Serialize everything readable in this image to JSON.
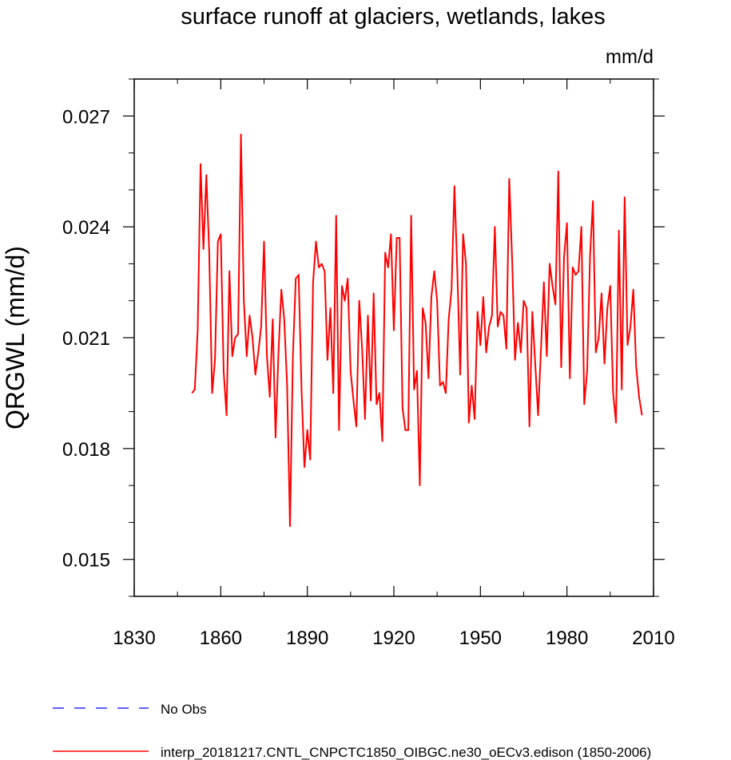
{
  "chart_data": {
    "type": "line",
    "title": "surface runoff at glaciers, wetlands, lakes",
    "units": "mm/d",
    "ylabel": "QRGWL  (mm/d)",
    "xlabel": "",
    "xlim": [
      1830,
      2010
    ],
    "ylim": [
      0.014,
      0.028
    ],
    "xticks": [
      1830,
      1860,
      1890,
      1920,
      1950,
      1980,
      2010
    ],
    "xtick_labels": [
      "1830",
      "1860",
      "1890",
      "1920",
      "1950",
      "1980",
      "2010"
    ],
    "yticks": [
      0.015,
      0.018,
      0.021,
      0.024,
      0.027
    ],
    "ytick_labels": [
      "0.015",
      "0.018",
      "0.021",
      "0.024",
      "0.027"
    ],
    "grid": false,
    "legend_position": "bottom",
    "series": [
      {
        "name": "No Obs",
        "color": "#0000ff",
        "style": "dashed",
        "x": [],
        "y": []
      },
      {
        "name": "interp_20181217.CNTL_CNPCTC1850_OIBGC.ne30_oECv3.edison (1850-2006)",
        "color": "#ff0000",
        "style": "solid",
        "x_start": 1850,
        "x_step": 1,
        "y": [
          0.0195,
          0.0196,
          0.0212,
          0.0257,
          0.0234,
          0.0254,
          0.0233,
          0.0195,
          0.0204,
          0.0236,
          0.0238,
          0.0201,
          0.0189,
          0.0228,
          0.0205,
          0.021,
          0.0211,
          0.0265,
          0.022,
          0.0205,
          0.0216,
          0.021,
          0.02,
          0.0206,
          0.0213,
          0.0236,
          0.0205,
          0.0194,
          0.0215,
          0.0183,
          0.0206,
          0.0223,
          0.0215,
          0.0197,
          0.0159,
          0.0205,
          0.0226,
          0.0227,
          0.0196,
          0.0175,
          0.0185,
          0.0177,
          0.0225,
          0.0236,
          0.0229,
          0.023,
          0.0228,
          0.0204,
          0.0218,
          0.0195,
          0.0243,
          0.0185,
          0.0224,
          0.022,
          0.0226,
          0.0201,
          0.0193,
          0.0186,
          0.022,
          0.0207,
          0.0188,
          0.0216,
          0.0193,
          0.0222,
          0.0192,
          0.0195,
          0.0182,
          0.0233,
          0.0229,
          0.0238,
          0.0212,
          0.0237,
          0.0237,
          0.0191,
          0.0185,
          0.0185,
          0.0243,
          0.0196,
          0.0201,
          0.017,
          0.0218,
          0.0214,
          0.0199,
          0.0221,
          0.0228,
          0.022,
          0.0197,
          0.0198,
          0.0195,
          0.0215,
          0.0223,
          0.0251,
          0.0228,
          0.02,
          0.0238,
          0.023,
          0.0187,
          0.0197,
          0.0188,
          0.0217,
          0.0208,
          0.0221,
          0.0206,
          0.0213,
          0.0216,
          0.024,
          0.0213,
          0.0217,
          0.0216,
          0.0207,
          0.0253,
          0.0231,
          0.0204,
          0.0214,
          0.0206,
          0.022,
          0.0218,
          0.0186,
          0.0217,
          0.0203,
          0.0189,
          0.0207,
          0.0225,
          0.0205,
          0.023,
          0.0224,
          0.0219,
          0.0255,
          0.0202,
          0.0232,
          0.0241,
          0.0199,
          0.0229,
          0.0227,
          0.0228,
          0.024,
          0.0192,
          0.0201,
          0.0232,
          0.0247,
          0.0206,
          0.021,
          0.0222,
          0.0203,
          0.0218,
          0.0224,
          0.0195,
          0.0187,
          0.0239,
          0.0196,
          0.0248,
          0.0208,
          0.0213,
          0.0223,
          0.0202,
          0.0194,
          0.0189
        ]
      }
    ]
  }
}
